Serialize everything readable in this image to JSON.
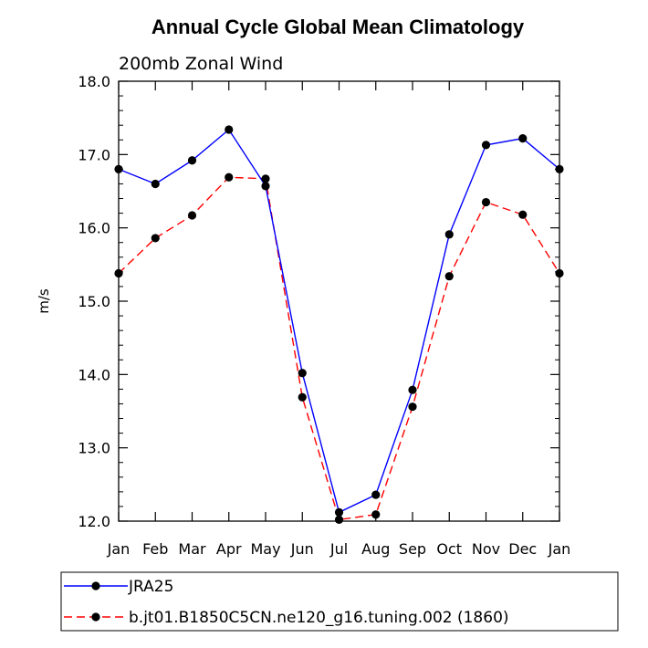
{
  "chart_data": {
    "type": "line",
    "title": "Annual Cycle Global Mean Climatology",
    "subtitle": "200mb Zonal Wind",
    "xlabel": "",
    "ylabel": "m/s",
    "categories": [
      "Jan",
      "Feb",
      "Mar",
      "Apr",
      "May",
      "Jun",
      "Jul",
      "Aug",
      "Sep",
      "Oct",
      "Nov",
      "Dec",
      "Jan"
    ],
    "ylim": [
      12.0,
      18.0
    ],
    "yticks": [
      "12.0",
      "13.0",
      "14.0",
      "15.0",
      "16.0",
      "17.0",
      "18.0"
    ],
    "grid": false,
    "legend_position": "bottom",
    "series": [
      {
        "name": "JRA25",
        "color": "#0000ff",
        "dash": "solid",
        "marker": "filled-circle",
        "values": [
          16.8,
          16.6,
          16.92,
          17.34,
          16.57,
          14.02,
          12.12,
          12.36,
          13.79,
          15.91,
          17.13,
          17.22,
          16.8
        ]
      },
      {
        "name": "b.jt01.B1850C5CN.ne120_g16.tuning.002 (1860)",
        "color": "#ff0000",
        "dash": "dashed",
        "marker": "filled-circle",
        "values": [
          15.38,
          15.86,
          16.17,
          16.69,
          16.67,
          13.69,
          12.02,
          12.09,
          13.56,
          15.34,
          16.35,
          16.18,
          15.38
        ]
      }
    ]
  }
}
